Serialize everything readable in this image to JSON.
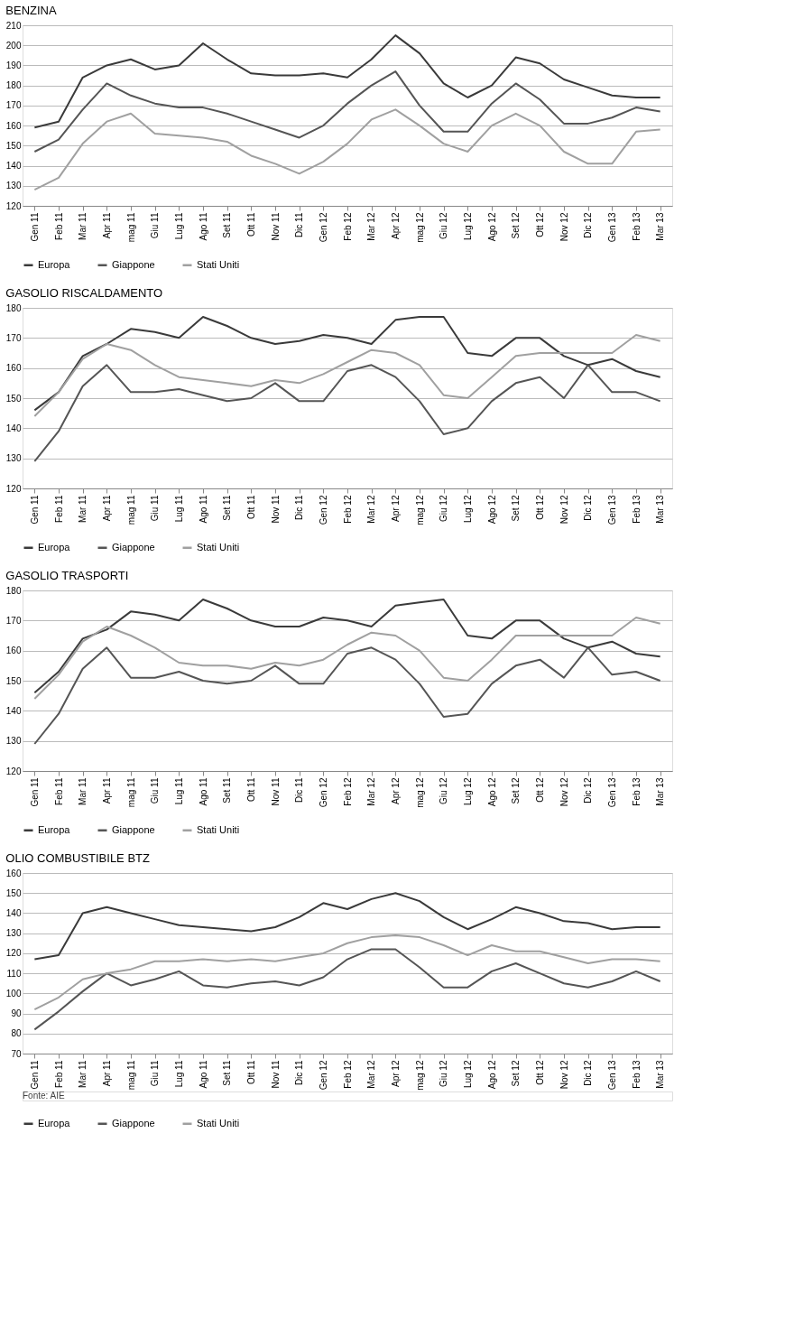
{
  "chart_data": [
    {
      "type": "line",
      "title": "BENZINA",
      "categories": [
        "Gen 11",
        "Feb 11",
        "Mar 11",
        "Apr 11",
        "mag 11",
        "Giu 11",
        "Lug 11",
        "Ago 11",
        "Set 11",
        "Ott 11",
        "Nov 11",
        "Dic 11",
        "Gen 12",
        "Feb 12",
        "Mar 12",
        "Apr 12",
        "mag 12",
        "Giu 12",
        "Lug 12",
        "Ago 12",
        "Set 12",
        "Ott 12",
        "Nov 12",
        "Dic 12",
        "Gen 13",
        "Feb 13",
        "Mar 13"
      ],
      "ylim": [
        120,
        210
      ],
      "yticks": [
        120,
        130,
        140,
        150,
        160,
        170,
        180,
        190,
        200,
        210
      ],
      "grid": "y",
      "legend": "bottom",
      "series": [
        {
          "name": "Europa",
          "color": "#3a3a3a",
          "values": [
            159,
            162,
            184,
            190,
            193,
            188,
            190,
            201,
            193,
            186,
            185,
            185,
            186,
            184,
            193,
            205,
            196,
            181,
            174,
            180,
            194,
            191,
            183,
            179,
            175,
            174,
            174
          ]
        },
        {
          "name": "Giappone",
          "color": "#555555",
          "values": [
            147,
            153,
            168,
            181,
            175,
            171,
            169,
            169,
            166,
            162,
            158,
            154,
            160,
            171,
            180,
            187,
            170,
            157,
            157,
            171,
            181,
            173,
            161,
            161,
            164,
            169,
            167
          ]
        },
        {
          "name": "Stati Uniti",
          "color": "#a0a0a0",
          "values": [
            128,
            134,
            151,
            162,
            166,
            156,
            155,
            154,
            152,
            145,
            141,
            136,
            142,
            151,
            163,
            168,
            160,
            151,
            147,
            160,
            166,
            160,
            147,
            141,
            141,
            157,
            158
          ]
        }
      ]
    },
    {
      "type": "line",
      "title": "GASOLIO RISCALDAMENTO",
      "categories": [
        "Gen 11",
        "Feb 11",
        "Mar 11",
        "Apr 11",
        "mag 11",
        "Giu 11",
        "Lug 11",
        "Ago 11",
        "Set 11",
        "Ott 11",
        "Nov 11",
        "Dic 11",
        "Gen 12",
        "Feb 12",
        "Mar 12",
        "Apr 12",
        "mag 12",
        "Giu 12",
        "Lug 12",
        "Ago 12",
        "Set 12",
        "Ott 12",
        "Nov 12",
        "Dic 12",
        "Gen 13",
        "Feb 13",
        "Mar 13"
      ],
      "ylim": [
        120,
        180
      ],
      "yticks": [
        120,
        130,
        140,
        150,
        160,
        170,
        180
      ],
      "grid": "y",
      "legend": "bottom",
      "series": [
        {
          "name": "Europa",
          "color": "#3a3a3a",
          "values": [
            146,
            152,
            164,
            168,
            173,
            172,
            170,
            177,
            174,
            170,
            168,
            169,
            171,
            170,
            168,
            176,
            177,
            177,
            165,
            164,
            170,
            170,
            164,
            161,
            163,
            159,
            157
          ]
        },
        {
          "name": "Giappone",
          "color": "#555555",
          "values": [
            129,
            139,
            154,
            161,
            152,
            152,
            153,
            151,
            149,
            150,
            155,
            149,
            149,
            159,
            161,
            157,
            149,
            138,
            140,
            149,
            155,
            157,
            150,
            161,
            152,
            152,
            149
          ]
        },
        {
          "name": "Stati Uniti",
          "color": "#a0a0a0",
          "values": [
            144,
            152,
            163,
            168,
            166,
            161,
            157,
            156,
            155,
            154,
            156,
            155,
            158,
            162,
            166,
            165,
            161,
            151,
            150,
            157,
            164,
            165,
            165,
            165,
            165,
            171,
            169
          ]
        }
      ]
    },
    {
      "type": "line",
      "title": "GASOLIO TRASPORTI",
      "categories": [
        "Gen 11",
        "Feb 11",
        "Mar 11",
        "Apr 11",
        "mag 11",
        "Giu 11",
        "Lug 11",
        "Ago 11",
        "Set 11",
        "Ott 11",
        "Nov 11",
        "Dic 11",
        "Gen 12",
        "Feb 12",
        "Mar 12",
        "Apr 12",
        "mag 12",
        "Giu 12",
        "Lug 12",
        "Ago 12",
        "Set 12",
        "Ott 12",
        "Nov 12",
        "Dic 12",
        "Gen 13",
        "Feb 13",
        "Mar 13"
      ],
      "ylim": [
        120,
        180
      ],
      "yticks": [
        120,
        130,
        140,
        150,
        160,
        170,
        180
      ],
      "grid": "y",
      "legend": "bottom",
      "series": [
        {
          "name": "Europa",
          "color": "#3a3a3a",
          "values": [
            146,
            153,
            164,
            167,
            173,
            172,
            170,
            177,
            174,
            170,
            168,
            168,
            171,
            170,
            168,
            175,
            176,
            177,
            165,
            164,
            170,
            170,
            164,
            161,
            163,
            159,
            158
          ]
        },
        {
          "name": "Giappone",
          "color": "#555555",
          "values": [
            129,
            139,
            154,
            161,
            151,
            151,
            153,
            150,
            149,
            150,
            155,
            149,
            149,
            159,
            161,
            157,
            149,
            138,
            139,
            149,
            155,
            157,
            151,
            161,
            152,
            153,
            150
          ]
        },
        {
          "name": "Stati Uniti",
          "color": "#a0a0a0",
          "values": [
            144,
            152,
            163,
            168,
            165,
            161,
            156,
            155,
            155,
            154,
            156,
            155,
            157,
            162,
            166,
            165,
            160,
            151,
            150,
            157,
            165,
            165,
            165,
            165,
            165,
            171,
            169
          ]
        }
      ]
    },
    {
      "type": "line",
      "title": "OLIO COMBUSTIBILE BTZ",
      "categories": [
        "Gen 11",
        "Feb 11",
        "Mar 11",
        "Apr 11",
        "mag 11",
        "Giu 11",
        "Lug 11",
        "Ago 11",
        "Set 11",
        "Ott 11",
        "Nov 11",
        "Dic 11",
        "Gen 12",
        "Feb 12",
        "Mar 12",
        "Apr 12",
        "mag 12",
        "Giu 12",
        "Lug 12",
        "Ago 12",
        "Set 12",
        "Ott 12",
        "Nov 12",
        "Dic 12",
        "Gen 13",
        "Feb 13",
        "Mar 13"
      ],
      "ylim": [
        70,
        160
      ],
      "yticks": [
        70,
        80,
        90,
        100,
        110,
        120,
        130,
        140,
        150,
        160
      ],
      "grid": "y",
      "legend": "bottom",
      "annotations": [
        "Fonte: AIE"
      ],
      "series": [
        {
          "name": "Europa",
          "color": "#3a3a3a",
          "values": [
            117,
            119,
            140,
            143,
            140,
            137,
            134,
            133,
            132,
            131,
            133,
            138,
            145,
            142,
            147,
            150,
            146,
            138,
            132,
            137,
            143,
            140,
            136,
            135,
            132,
            133,
            133
          ]
        },
        {
          "name": "Giappone",
          "color": "#555555",
          "values": [
            82,
            91,
            101,
            110,
            104,
            107,
            111,
            104,
            103,
            105,
            106,
            104,
            108,
            117,
            122,
            122,
            113,
            103,
            103,
            111,
            115,
            110,
            105,
            103,
            106,
            111,
            106
          ]
        },
        {
          "name": "Stati Uniti",
          "color": "#a0a0a0",
          "values": [
            92,
            98,
            107,
            110,
            112,
            116,
            116,
            117,
            116,
            117,
            116,
            118,
            120,
            125,
            128,
            129,
            128,
            124,
            119,
            124,
            121,
            121,
            118,
            115,
            117,
            117,
            116
          ]
        }
      ]
    }
  ]
}
